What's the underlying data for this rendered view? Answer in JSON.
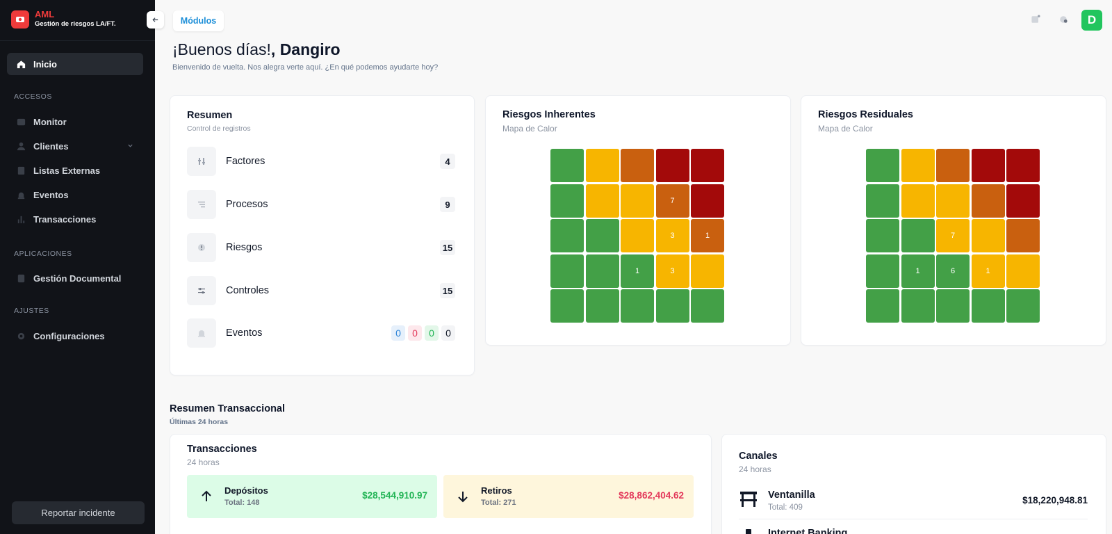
{
  "brand": {
    "title": "AML",
    "subtitle": "Gestión de riesgos LA/FT."
  },
  "sidebar": {
    "home": "Inicio",
    "sections": [
      {
        "title": "ACCESOS",
        "items": [
          "Monitor",
          "Clientes",
          "Listas Externas",
          "Eventos",
          "Transacciones"
        ]
      },
      {
        "title": "APLICACIONES",
        "items": [
          "Gestión Documental"
        ]
      },
      {
        "title": "AJUSTES",
        "items": [
          "Configuraciones"
        ]
      }
    ],
    "report_button": "Reportar incidente"
  },
  "topbar": {
    "modules_label": "Módulos",
    "avatar_letter": "D"
  },
  "greeting": {
    "hello": "¡Buenos días!",
    "name": ", Dangiro",
    "subtitle": "Bienvenido de vuelta. Nos alegra verte aquí. ¿En qué podemos ayudarte hoy?"
  },
  "summary": {
    "title": "Resumen",
    "subtitle": "Control de registros",
    "rows": [
      {
        "label": "Factores",
        "count": "4"
      },
      {
        "label": "Procesos",
        "count": "9"
      },
      {
        "label": "Riesgos",
        "count": "15"
      },
      {
        "label": "Controles",
        "count": "15"
      }
    ],
    "events": {
      "label": "Eventos",
      "badges": [
        "0",
        "0",
        "0",
        "0"
      ]
    }
  },
  "heatmaps": [
    {
      "title": "Riesgos Inherentes",
      "subtitle": "Mapa de Calor",
      "cells": [
        [
          "",
          "",
          "",
          "",
          ""
        ],
        [
          "",
          "",
          "",
          "7",
          ""
        ],
        [
          "",
          "",
          "",
          "3",
          "1"
        ],
        [
          "",
          "",
          "1",
          "3",
          ""
        ],
        [
          "",
          "",
          "",
          "",
          ""
        ]
      ],
      "colors": [
        [
          "#43a047",
          "#f7b500",
          "#c9600f",
          "#a30a0a",
          "#a30a0a"
        ],
        [
          "#43a047",
          "#f7b500",
          "#f7b500",
          "#c9600f",
          "#a30a0a"
        ],
        [
          "#43a047",
          "#43a047",
          "#f7b500",
          "#f7b500",
          "#c9600f"
        ],
        [
          "#43a047",
          "#43a047",
          "#43a047",
          "#f7b500",
          "#f7b500"
        ],
        [
          "#43a047",
          "#43a047",
          "#43a047",
          "#43a047",
          "#43a047"
        ]
      ]
    },
    {
      "title": "Riesgos Residuales",
      "subtitle": "Mapa de Calor",
      "cells": [
        [
          "",
          "",
          "",
          "",
          ""
        ],
        [
          "",
          "",
          "",
          "",
          ""
        ],
        [
          "",
          "",
          "7",
          "",
          ""
        ],
        [
          "",
          "1",
          "6",
          "1",
          ""
        ],
        [
          "",
          "",
          "",
          "",
          ""
        ]
      ],
      "colors": [
        [
          "#43a047",
          "#f7b500",
          "#c9600f",
          "#a30a0a",
          "#a30a0a"
        ],
        [
          "#43a047",
          "#f7b500",
          "#f7b500",
          "#c9600f",
          "#a30a0a"
        ],
        [
          "#43a047",
          "#43a047",
          "#f7b500",
          "#f7b500",
          "#c9600f"
        ],
        [
          "#43a047",
          "#43a047",
          "#43a047",
          "#f7b500",
          "#f7b500"
        ],
        [
          "#43a047",
          "#43a047",
          "#43a047",
          "#43a047",
          "#43a047"
        ]
      ]
    }
  ],
  "transactional": {
    "title": "Resumen Transaccional",
    "subtitle": "Últimas 24 horas",
    "transactions": {
      "title": "Transacciones",
      "subtitle": "24 horas",
      "deposits": {
        "label": "Depósitos",
        "total": "Total: 148",
        "amount": "$28,544,910.97"
      },
      "withdrawals": {
        "label": "Retiros",
        "total": "Total: 271",
        "amount": "$28,862,404.62"
      }
    },
    "channels": {
      "title": "Canales",
      "subtitle": "24 horas",
      "items": [
        {
          "name": "Ventanilla",
          "total": "Total: 409",
          "amount": "$18,220,948.81"
        },
        {
          "name": "Internet Banking",
          "total": "",
          "amount": ""
        }
      ]
    }
  }
}
